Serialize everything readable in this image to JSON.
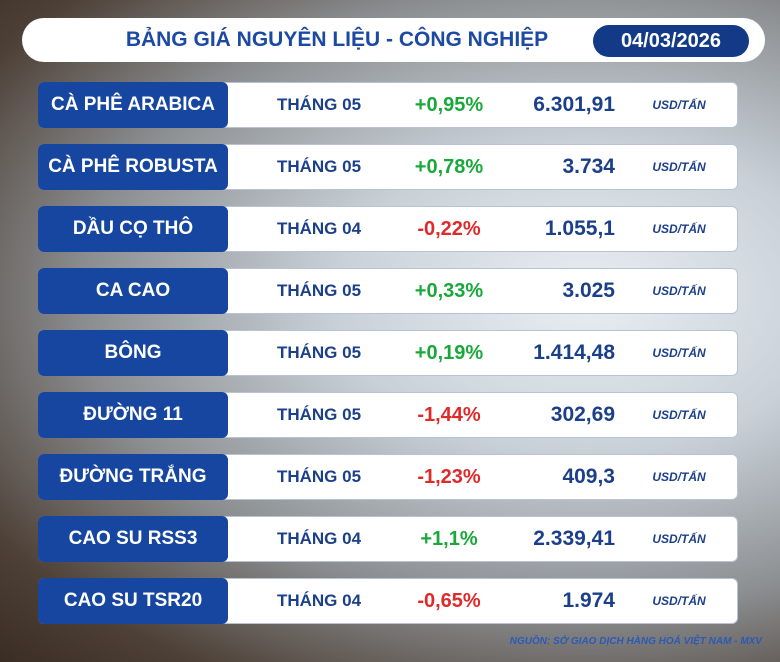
{
  "header": {
    "title": "BẢNG GIÁ NGUYÊN LIỆU - CÔNG NGHIỆP",
    "date": "04/03/2026"
  },
  "table": {
    "rows": [
      [
        "CÀ PHÊ ARABICA",
        "THÁNG 05",
        "+0,95%",
        "6.301,91",
        "USD/TẤN"
      ],
      [
        "CÀ PHÊ ROBUSTA",
        "THÁNG 05",
        "+0,78%",
        "3.734",
        "USD/TẤN"
      ],
      [
        "DẦU CỌ THÔ",
        "THÁNG 04",
        "-0,22%",
        "1.055,1",
        "USD/TẤN"
      ],
      [
        "CA CAO",
        "THÁNG 05",
        "+0,33%",
        "3.025",
        "USD/TẤN"
      ],
      [
        "BÔNG",
        "THÁNG 05",
        "+0,19%",
        "1.414,48",
        "USD/TẤN"
      ],
      [
        "ĐƯỜNG 11",
        "THÁNG 05",
        "-1,44%",
        "302,69",
        "USD/TẤN"
      ],
      [
        "ĐƯỜNG TRẮNG",
        "THÁNG 05",
        "-1,23%",
        "409,3",
        "USD/TẤN"
      ],
      [
        "CAO SU RSS3",
        "THÁNG 04",
        "+1,1%",
        "2.339,41",
        "USD/TẤN"
      ],
      [
        "CAO SU TSR20",
        "THÁNG 04",
        "-0,65%",
        "1.974",
        "USD/TẤN"
      ]
    ]
  },
  "source": "NGUỒN: SỞ GIAO DỊCH HÀNG HOÁ VIỆT NAM - MXV"
}
